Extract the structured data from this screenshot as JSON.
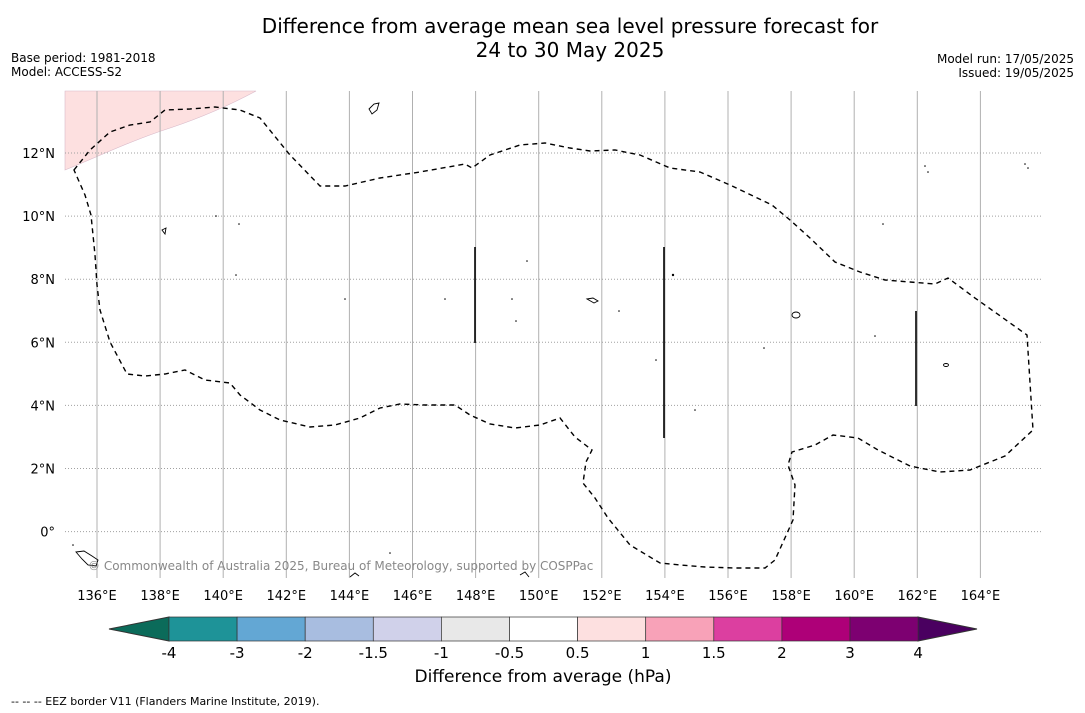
{
  "header": {
    "title_line1": "Difference from average mean sea level pressure forecast for",
    "title_line2": "24 to 30 May 2025",
    "base_period": "Base period: 1981-2018",
    "model": "Model: ACCESS-S2",
    "model_run": "Model run: 17/05/2025",
    "issued": "Issued: 19/05/2025"
  },
  "map": {
    "lon_ticks": [
      "136°E",
      "138°E",
      "140°E",
      "142°E",
      "144°E",
      "146°E",
      "148°E",
      "150°E",
      "152°E",
      "154°E",
      "156°E",
      "158°E",
      "160°E",
      "162°E",
      "164°E"
    ],
    "lat_ticks": [
      "12°N",
      "10°N",
      "8°N",
      "6°N",
      "4°N",
      "2°N",
      "0°"
    ],
    "copyright": "© Commonwealth of Australia 2025, Bureau of Meteorology, supported by COSPPac",
    "anomaly_region": {
      "location": "top-left corner",
      "category": "0.5 to 1",
      "color": "#fde0e0"
    },
    "boundary_style": "dashed EEZ outline"
  },
  "colorbar": {
    "title": "Difference from average (hPa)",
    "tick_labels": [
      "-4",
      "-3",
      "-2",
      "-1.5",
      "-1",
      "-0.5",
      "0.5",
      "1",
      "1.5",
      "2",
      "3",
      "4"
    ],
    "colors": [
      "#1e9398",
      "#63a7d4",
      "#a8bde0",
      "#d0d1ea",
      "#e8e8e8",
      "#ffffff",
      "#fde0e0",
      "#f8a2b8",
      "#dc3fa0",
      "#ae0078",
      "#7d0071"
    ],
    "under_color": "#0b6b5a",
    "over_color": "#4a0060"
  },
  "footnote": "--  --  -- EEZ border V11 (Flanders Marine Institute, 2019)."
}
